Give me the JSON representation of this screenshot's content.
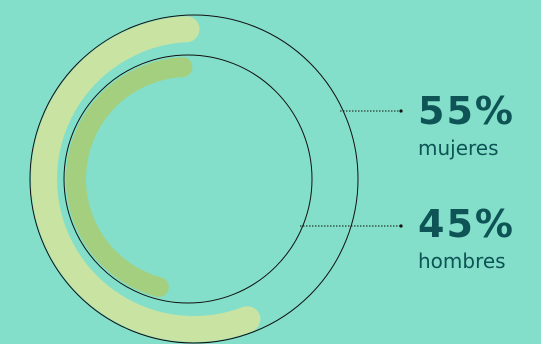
{
  "colors": {
    "background": "#83dfc9",
    "outer_ring": "#c9e3a2",
    "inner_ring": "#a4cf7f",
    "text": "#0e5456",
    "line": "#111111"
  },
  "chart_data": {
    "type": "pie",
    "title": "",
    "series": [
      {
        "name": "mujeres",
        "value": 55,
        "label": "55%"
      },
      {
        "name": "hombres",
        "value": 45,
        "label": "45%"
      }
    ]
  }
}
